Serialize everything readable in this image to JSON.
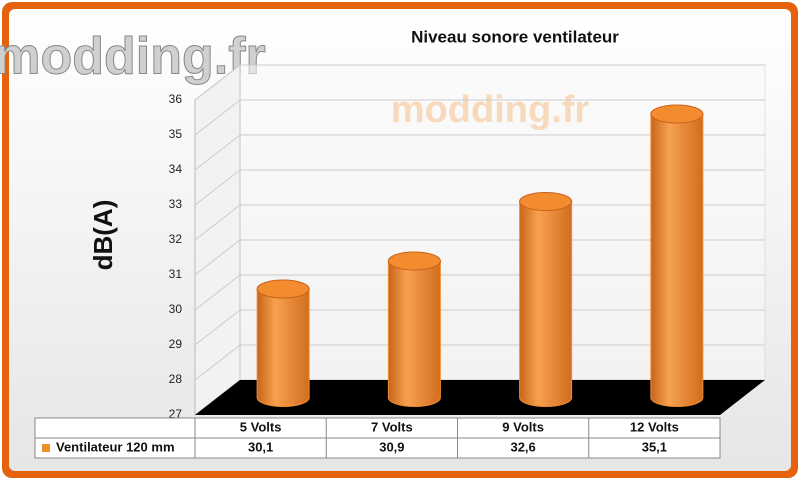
{
  "chart_data": {
    "type": "bar",
    "title": "Niveau sonore ventilateur",
    "y_label": "dB(A)",
    "watermark": "modding.fr",
    "categories": [
      "5 Volts",
      "7 Volts",
      "9 Volts",
      "12 Volts"
    ],
    "series": [
      {
        "name": "Ventilateur 120 mm",
        "color": "#f28c2e",
        "values": [
          30.1,
          30.9,
          32.6,
          35.1
        ],
        "value_labels": [
          "30,1",
          "30,9",
          "32,6",
          "35,1"
        ]
      }
    ],
    "ylim": [
      27,
      36
    ],
    "yticks": [
      27,
      28,
      29,
      30,
      31,
      32,
      33,
      34,
      35,
      36
    ],
    "grid": true
  }
}
